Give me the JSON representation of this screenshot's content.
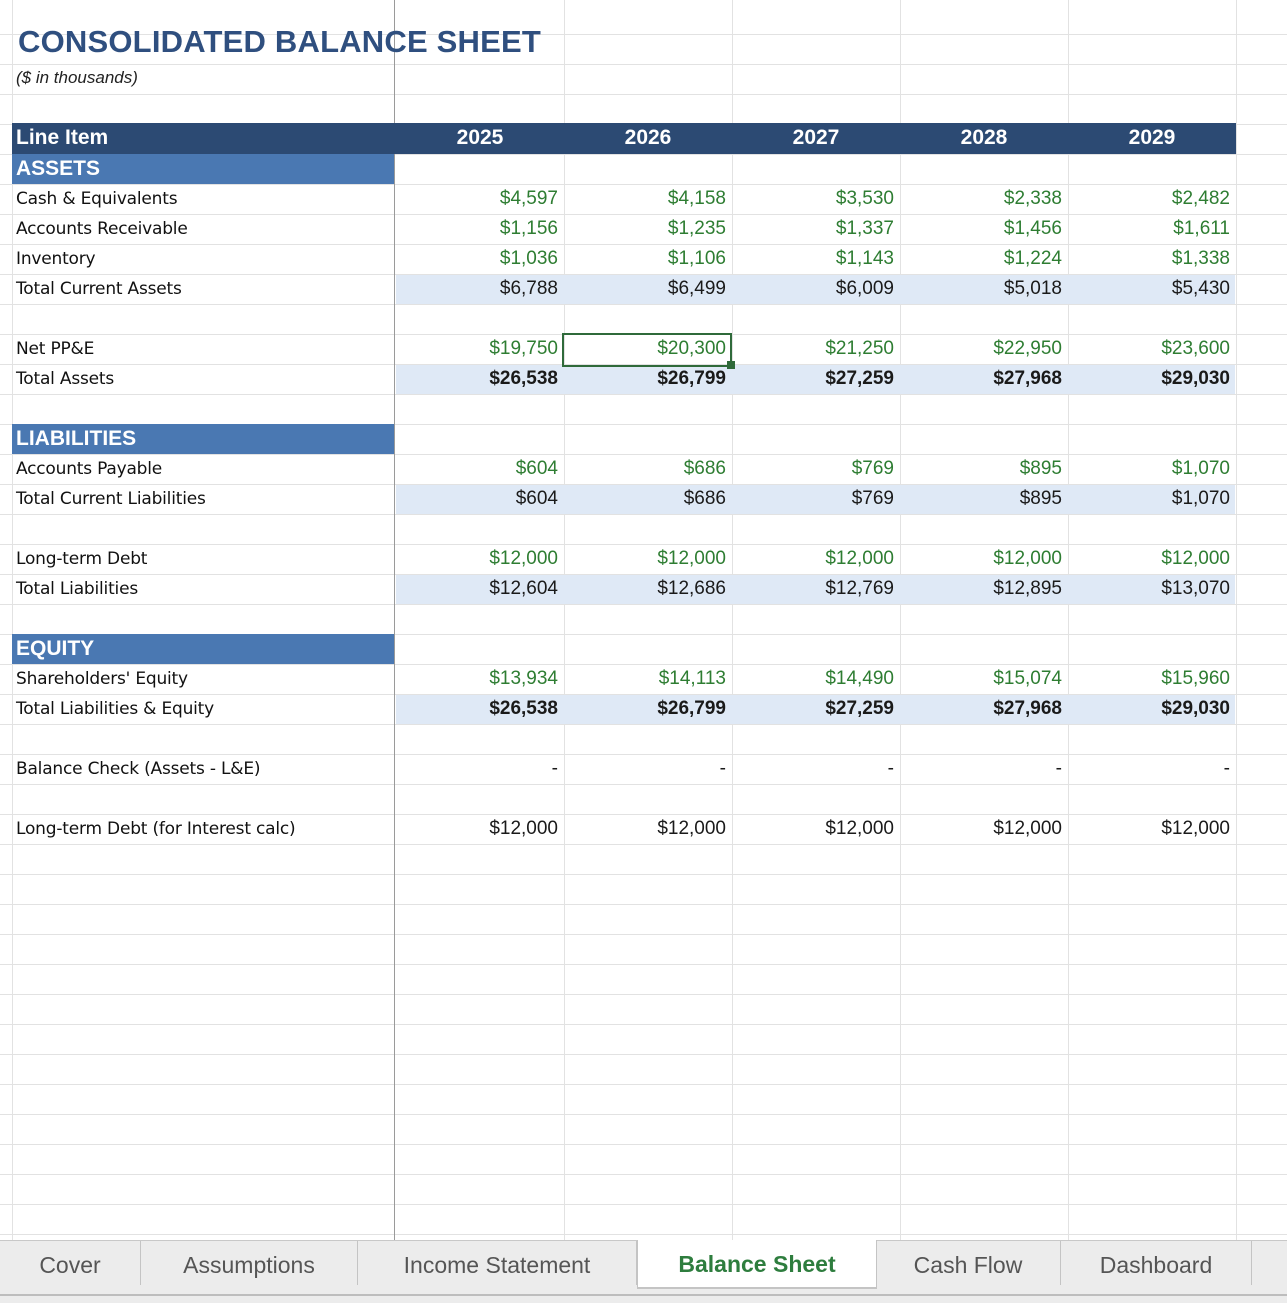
{
  "sheet": {
    "title": "CONSOLIDATED BALANCE SHEET",
    "subtitle": "($ in thousands)",
    "header": {
      "line_item": "Line Item",
      "years": [
        "2025",
        "2026",
        "2027",
        "2028",
        "2029"
      ]
    },
    "sections": {
      "assets": "ASSETS",
      "liabilities": "LIABILITIES",
      "equity": "EQUITY"
    },
    "rows": [
      {
        "label": "Cash & Equivalents",
        "values": [
          "$4,597",
          "$4,158",
          "$3,530",
          "$2,338",
          "$2,482"
        ],
        "style": "input"
      },
      {
        "label": "Accounts Receivable",
        "values": [
          "$1,156",
          "$1,235",
          "$1,337",
          "$1,456",
          "$1,611"
        ],
        "style": "input"
      },
      {
        "label": "Inventory",
        "values": [
          "$1,036",
          "$1,106",
          "$1,143",
          "$1,224",
          "$1,338"
        ],
        "style": "input"
      },
      {
        "label": "Total Current Assets",
        "values": [
          "$6,788",
          "$6,499",
          "$6,009",
          "$5,018",
          "$5,430"
        ],
        "style": "total"
      },
      {
        "label": "Net PP&E",
        "values": [
          "$19,750",
          "$20,300",
          "$21,250",
          "$22,950",
          "$23,600"
        ],
        "style": "input"
      },
      {
        "label": "Total Assets",
        "values": [
          "$26,538",
          "$26,799",
          "$27,259",
          "$27,968",
          "$29,030"
        ],
        "style": "grand"
      },
      {
        "label": "Accounts Payable",
        "values": [
          "$604",
          "$686",
          "$769",
          "$895",
          "$1,070"
        ],
        "style": "input"
      },
      {
        "label": "Total Current Liabilities",
        "values": [
          "$604",
          "$686",
          "$769",
          "$895",
          "$1,070"
        ],
        "style": "total"
      },
      {
        "label": "Long-term Debt",
        "values": [
          "$12,000",
          "$12,000",
          "$12,000",
          "$12,000",
          "$12,000"
        ],
        "style": "input"
      },
      {
        "label": "Total Liabilities",
        "values": [
          "$12,604",
          "$12,686",
          "$12,769",
          "$12,895",
          "$13,070"
        ],
        "style": "total"
      },
      {
        "label": "Shareholders' Equity",
        "values": [
          "$13,934",
          "$14,113",
          "$14,490",
          "$15,074",
          "$15,960"
        ],
        "style": "input"
      },
      {
        "label": "Total Liabilities & Equity",
        "values": [
          "$26,538",
          "$26,799",
          "$27,259",
          "$27,968",
          "$29,030"
        ],
        "style": "grand"
      },
      {
        "label": "Balance Check (Assets - L&E)",
        "values": [
          "-",
          "-",
          "-",
          "-",
          "-"
        ],
        "style": "plain"
      },
      {
        "label": "Long-term Debt (for Interest calc)",
        "values": [
          "$12,000",
          "$12,000",
          "$12,000",
          "$12,000",
          "$12,000"
        ],
        "style": "plain"
      }
    ]
  },
  "tabs": [
    "Cover",
    "Assumptions",
    "Income Statement",
    "Balance Sheet",
    "Cash Flow",
    "Dashboard"
  ],
  "active_tab": "Balance Sheet",
  "colors": {
    "header_bg": "#2c4a73",
    "section_bg": "#4a78b2",
    "total_band": "#dfe9f6",
    "input_text": "#2e7d32",
    "selection": "#2f6a3a"
  }
}
